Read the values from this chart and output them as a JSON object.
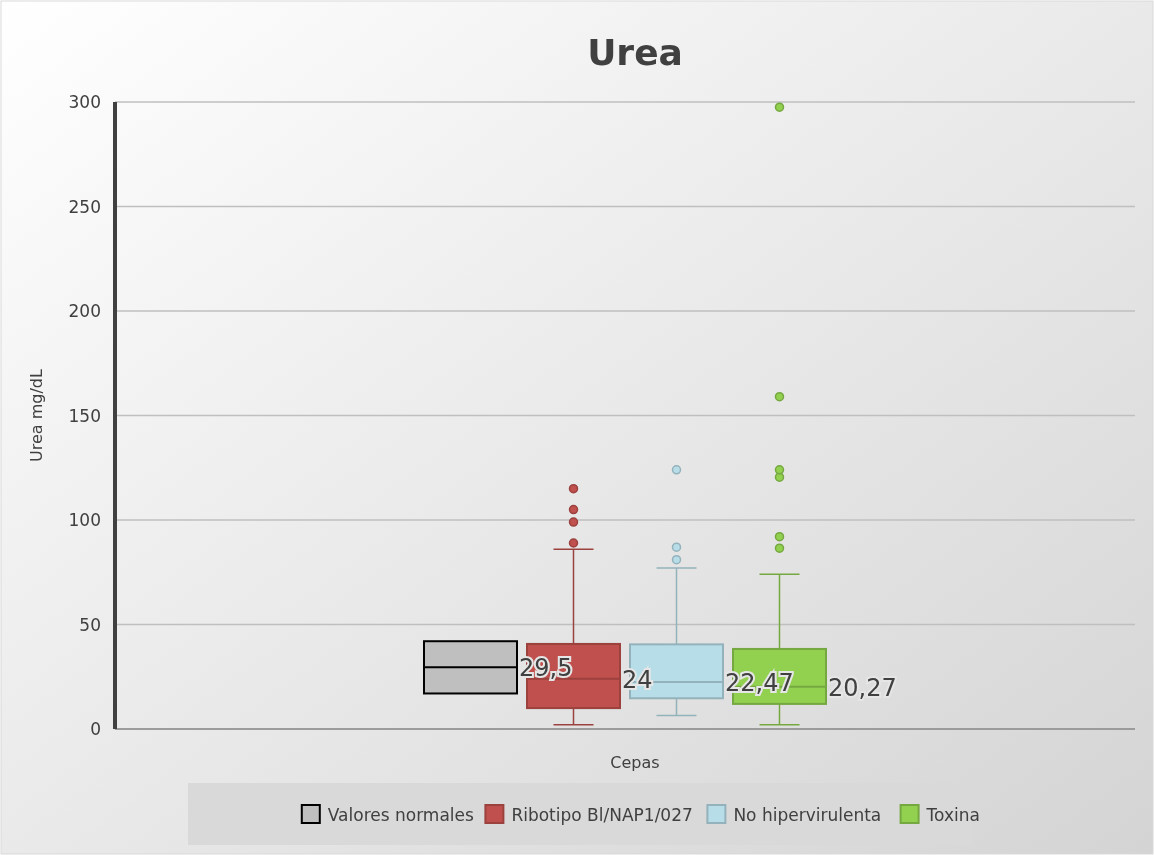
{
  "chart_data": {
    "type": "box",
    "title": "Urea",
    "xlabel": "Cepas",
    "ylabel": "Urea mg/dL",
    "categories": [
      null
    ],
    "ylim": [
      0,
      300
    ],
    "yticks": [
      0,
      50,
      100,
      150,
      200,
      250,
      300
    ],
    "grid": "y",
    "legend": "bottom",
    "series": [
      {
        "name": "Valores normales",
        "color": "#bfbfbf",
        "boxes": [
          {
            "low": 17,
            "q1": 17,
            "median": 29.5,
            "q3": 42,
            "high": 42
          }
        ]
      },
      {
        "name": "Ribotipo Bl/NAP1/027",
        "color": "#c0504d",
        "boxes": [
          {
            "low": 2,
            "q1": 10,
            "median": 24,
            "q3": 40.7,
            "high": 86,
            "outliers": [
              89,
              99,
              105,
              115
            ]
          }
        ]
      },
      {
        "name": "No hipervirulenta",
        "color": "#b7dde8",
        "boxes": [
          {
            "low": 6.5,
            "q1": 14.7,
            "median": 22.47,
            "q3": 40.5,
            "high": 77,
            "outliers": [
              81,
              87,
              124
            ]
          }
        ]
      },
      {
        "name": "Toxina",
        "color": "#92d050",
        "boxes": [
          {
            "low": 2,
            "q1": 12,
            "median": 20.27,
            "q3": 38.3,
            "high": 74,
            "outliers": [
              86.5,
              92,
              120.5,
              124,
              159,
              297.5
            ]
          }
        ]
      }
    ],
    "annotations": [
      "29,5",
      "24",
      "22,47",
      "20,27"
    ]
  }
}
